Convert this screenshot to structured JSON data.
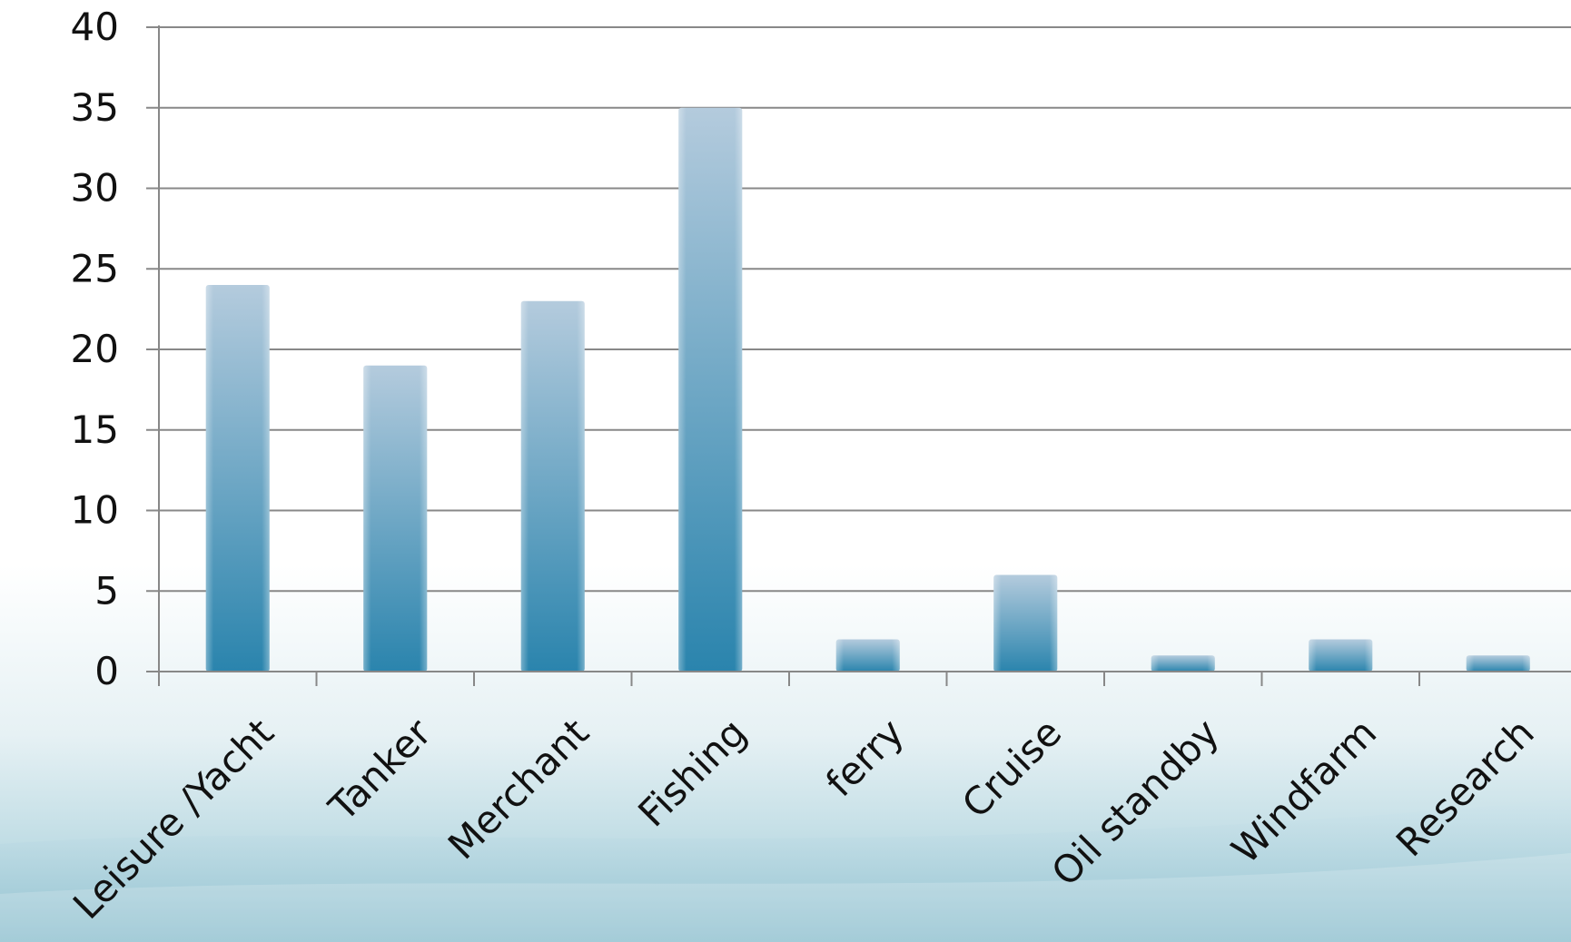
{
  "chart_data": {
    "type": "bar",
    "categories": [
      "Leisure /Yacht",
      "Tanker",
      "Merchant",
      "Fishing",
      "ferry",
      "Cruise",
      "Oil standby",
      "Windfarm",
      "Research"
    ],
    "values": [
      24,
      19,
      23,
      35,
      2,
      6,
      1,
      2,
      1
    ],
    "ylim": [
      0,
      40
    ],
    "yticks": [
      0,
      5,
      10,
      15,
      20,
      25,
      30,
      35,
      40
    ],
    "grid": true,
    "legend": "none",
    "colors": {
      "bar_top": "#b4cbdd",
      "bar_bottom": "#2a84ad",
      "grid": "#888888",
      "axis": "#888888",
      "background_wave": "#a8cfd9"
    }
  }
}
